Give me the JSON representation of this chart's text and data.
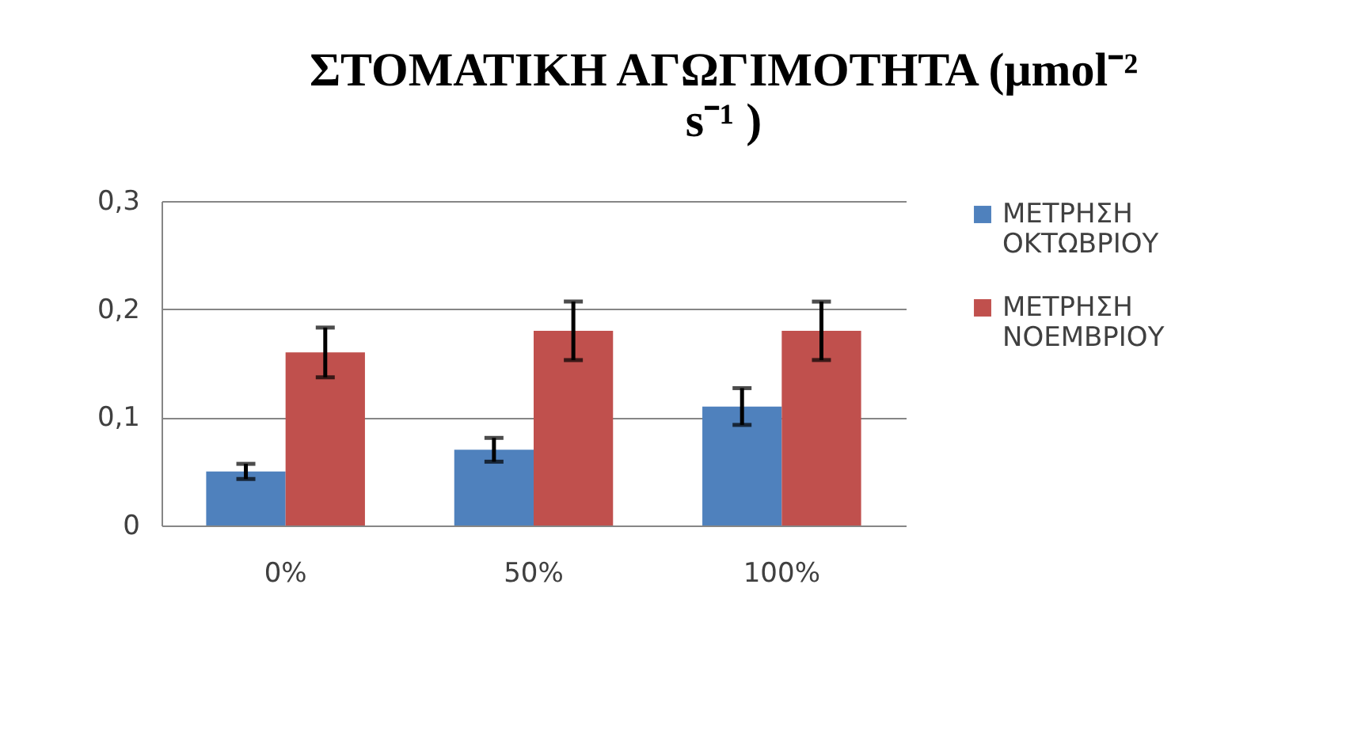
{
  "chart_data": {
    "type": "bar",
    "title": "ΣΤΟΜΑΤΙΚΗ ΑΓΩΓΙΜΟΤΗΤΑ (μmol⁻² s⁻¹ )",
    "categories": [
      "0%",
      "50%",
      "100%"
    ],
    "series": [
      {
        "name": "ΜΕΤΡΗΣΗ ΟΚΤΩΒΡΙΟΥ",
        "color": "#4f81bd",
        "values": [
          0.05,
          0.07,
          0.11
        ],
        "errors": [
          0.007,
          0.011,
          0.017
        ]
      },
      {
        "name": "ΜΕΤΡΗΣΗ ΝΟΕΜΒΡΙΟΥ",
        "color": "#c0504d",
        "values": [
          0.16,
          0.18,
          0.18
        ],
        "errors": [
          0.023,
          0.027,
          0.027
        ]
      }
    ],
    "ylim": [
      0,
      0.3
    ],
    "yticks": [
      0,
      {
        "value": 0.1,
        "label": "0,1"
      },
      {
        "value": 0.2,
        "label": "0,2"
      },
      {
        "value": 0.3,
        "label": "0,3"
      }
    ],
    "grid": "y",
    "legend": "right"
  }
}
